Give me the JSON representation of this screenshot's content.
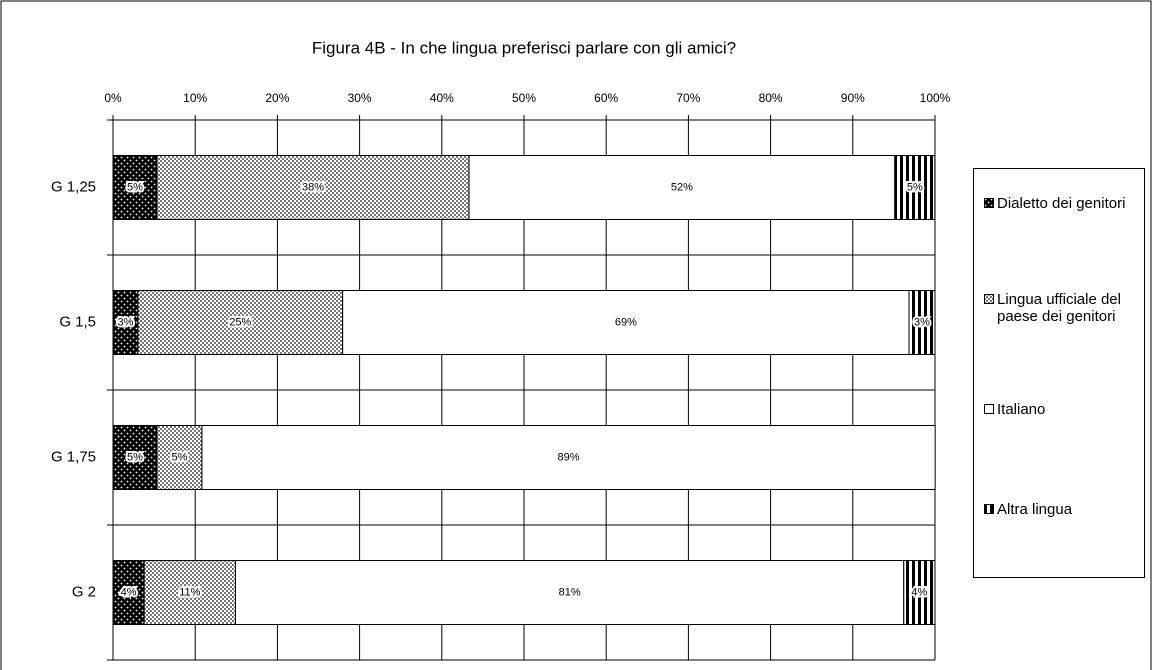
{
  "chart_data": {
    "type": "stacked-bar-horizontal",
    "title": "Figura 4B - In che lingua preferisci parlare con gli amici?",
    "categories": [
      "G 1,25",
      "G 1,5",
      "G 1,75",
      "G 2"
    ],
    "series": [
      {
        "name": "Dialetto dei genitori",
        "values": [
          5.35,
          3.04,
          5.35,
          3.8
        ],
        "value_labels": [
          "5%",
          "3%",
          "5%",
          "4%"
        ]
      },
      {
        "name": "Lingua ufficiale del paese dei genitori",
        "values": [
          37.96,
          24.9,
          5.47,
          11.1
        ],
        "value_labels": [
          "38%",
          "25%",
          "5%",
          "11%"
        ]
      },
      {
        "name": "Italiano",
        "values": [
          51.8,
          68.9,
          89.2,
          81.3
        ],
        "value_labels": [
          "52%",
          "69%",
          "89%",
          "81%"
        ]
      },
      {
        "name": "Altra lingua",
        "values": [
          4.87,
          3.16,
          null,
          3.8
        ],
        "value_labels": [
          "5%",
          "3%",
          null,
          "4%"
        ]
      }
    ],
    "xlim": [
      0,
      100
    ],
    "xticks": [
      {
        "value": 0,
        "label": "0%"
      },
      {
        "value": 10,
        "label": "10%"
      },
      {
        "value": 20,
        "label": "20%"
      },
      {
        "value": 30,
        "label": "30%"
      },
      {
        "value": 40,
        "label": "40%"
      },
      {
        "value": 50,
        "label": "50%"
      },
      {
        "value": 60,
        "label": "60%"
      },
      {
        "value": 70,
        "label": "70%"
      },
      {
        "value": 80,
        "label": "80%"
      },
      {
        "value": 90,
        "label": "90%"
      },
      {
        "value": 100,
        "label": "100%"
      }
    ],
    "grid": true,
    "legend": "right"
  }
}
